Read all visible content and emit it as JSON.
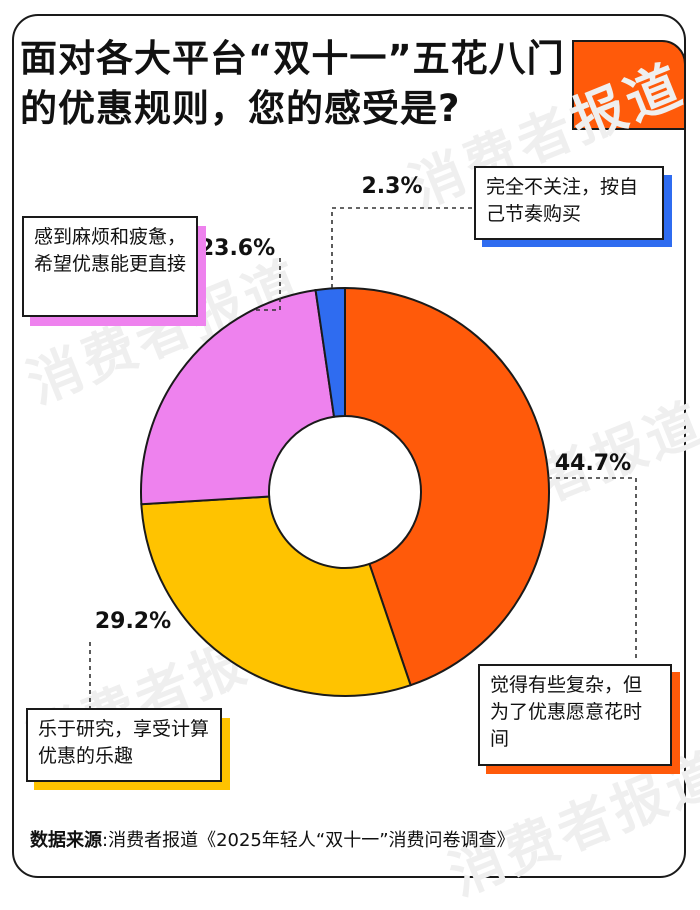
{
  "title": "面对各大平台“双十一”五花八门的优惠规则，您的感受是?",
  "watermark": "消费者报道",
  "colors": {
    "orange": "#ff5a0a",
    "yellow": "#ffc300",
    "pink": "#ee82ee",
    "blue": "#2f6cf0",
    "outline": "#1a1a1a"
  },
  "chart_data": {
    "type": "pie",
    "variant": "donut",
    "slices": [
      {
        "label": "觉得有些复杂，但为了优惠愿意花时间",
        "value": 44.7,
        "display": "44.7%",
        "color": "#ff5a0a"
      },
      {
        "label": "乐于研究，享受计算优惠的乐趣",
        "value": 29.2,
        "display": "29.2%",
        "color": "#ffc300"
      },
      {
        "label": "感到麻烦和疲惫，希望优惠能更直接",
        "value": 23.6,
        "display": "23.6%",
        "color": "#ee82ee"
      },
      {
        "label": "完全不关注，按自己节奏购买",
        "value": 2.3,
        "display": "2.3%",
        "color": "#2f6cf0"
      }
    ]
  },
  "labels": {
    "orange": "觉得有些复杂，但为了优惠愿意花时间",
    "yellow": "乐于研究，享受计算优惠的乐趣",
    "pink": "感到麻烦和疲惫，希望优惠能更直接",
    "blue": "完全不关注，按自己节奏购买"
  },
  "source": {
    "label": "数据来源",
    "text": "消费者报道《2025年轻人“双十一”消费问卷调查》"
  }
}
